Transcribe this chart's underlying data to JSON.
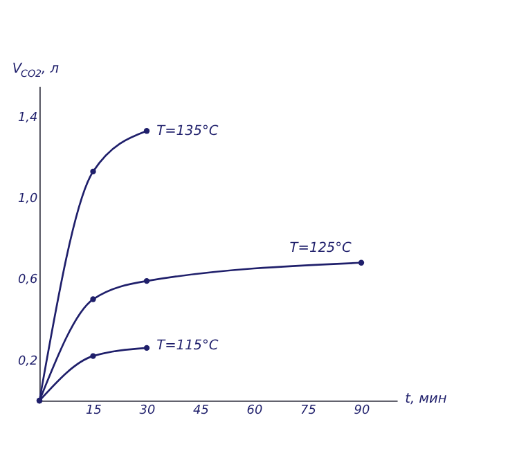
{
  "chart_data": {
    "type": "line",
    "xlabel": "t, мин",
    "ylabel": "V$_{CO2}$, л",
    "xlim": [
      0,
      100
    ],
    "xticks": [
      15,
      30,
      45,
      60,
      75,
      90
    ],
    "ylim": [
      0,
      1.55
    ],
    "yticks": [
      {
        "value": 0.2,
        "label": "0,2"
      },
      {
        "value": 0.6,
        "label": "0,6"
      },
      {
        "value": 1.0,
        "label": "1,0"
      },
      {
        "value": 1.4,
        "label": "1,4"
      }
    ],
    "grid": false,
    "marker": "circle",
    "line_style": "solid",
    "series": [
      {
        "name": "T=135°C",
        "color": "#1f1f6b",
        "x": [
          0,
          15,
          30
        ],
        "values": [
          0,
          1.13,
          1.33
        ]
      },
      {
        "name": "T=125°C",
        "color": "#1f1f6b",
        "x": [
          0,
          15,
          30,
          90
        ],
        "values": [
          0,
          0.5,
          0.59,
          0.68
        ]
      },
      {
        "name": "T=115°C",
        "color": "#1f1f6b",
        "x": [
          0,
          15,
          30
        ],
        "values": [
          0,
          0.22,
          0.26
        ]
      }
    ]
  }
}
